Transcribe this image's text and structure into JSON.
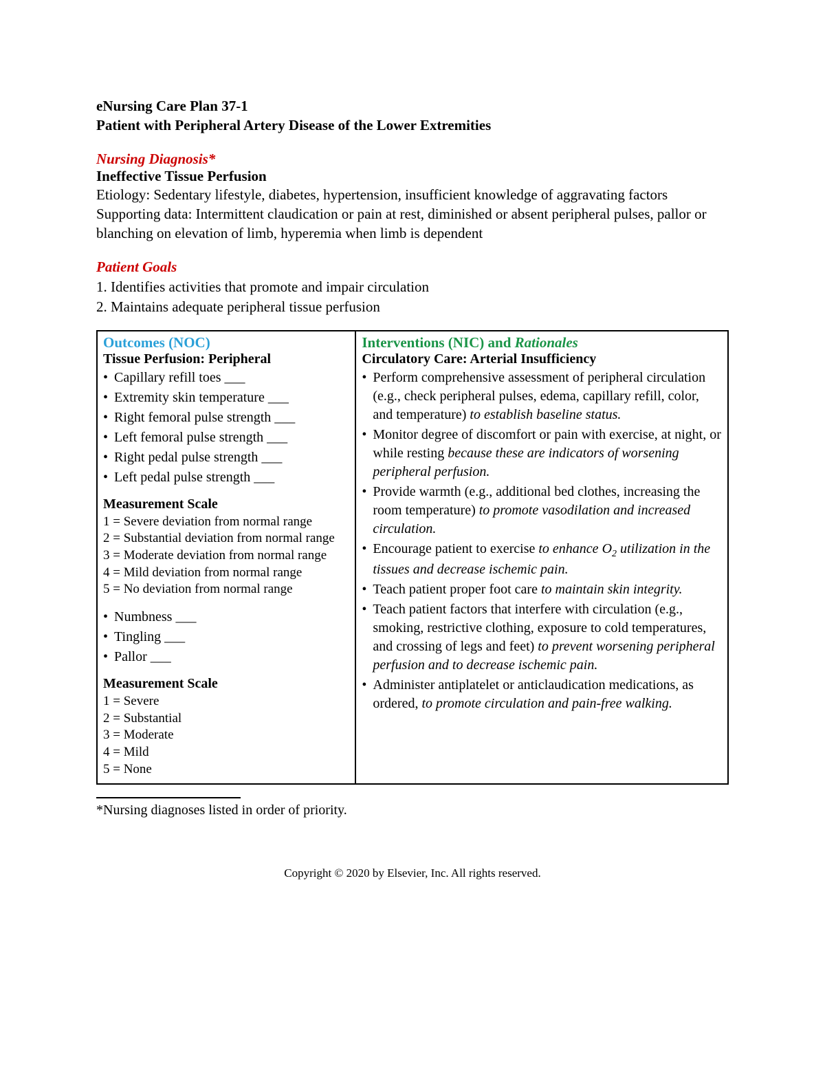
{
  "header": {
    "title_line1": "eNursing Care Plan 37-1",
    "title_line2": "Patient with Peripheral Artery Disease of the Lower Extremities"
  },
  "diagnosis": {
    "heading": "Nursing Diagnosis*",
    "name": "Ineffective Tissue Perfusion",
    "etiology_label": "Etiology:",
    "etiology_text": "Sedentary lifestyle, diabetes, hypertension, insufficient knowledge of aggravating factors",
    "supporting_label": "Supporting data:",
    "supporting_text": "Intermittent claudication or pain at rest, diminished or absent peripheral pulses, pallor or blanching on elevation of limb, hyperemia when limb is dependent"
  },
  "goals": {
    "heading": "Patient Goals",
    "items": [
      "1. Identifies activities that promote and impair circulation",
      "2. Maintains adequate peripheral tissue perfusion"
    ]
  },
  "table": {
    "headers": {
      "noc": "Outcomes (NOC)",
      "nic_prefix": "Interventions (NIC) and ",
      "nic_rationales": "Rationales"
    },
    "outcomes": {
      "title": "Tissue Perfusion: Peripheral",
      "indicators1": [
        "Capillary refill toes ___",
        "Extremity skin temperature ___",
        "Right femoral pulse strength ___",
        "Left femoral pulse strength ___",
        "Right pedal pulse strength ___",
        "Left pedal pulse strength ___"
      ],
      "scale1_title": "Measurement Scale",
      "scale1": [
        {
          "n": "1",
          "t": "Severe deviation from normal range"
        },
        {
          "n": "2",
          "t": "Substantial deviation from normal range"
        },
        {
          "n": "3",
          "t": "Moderate deviation from normal range"
        },
        {
          "n": "4",
          "t": "Mild deviation from normal range"
        },
        {
          "n": "5",
          "t": "No deviation from normal range"
        }
      ],
      "indicators2": [
        "Numbness ___",
        "Tingling ___",
        "Pallor ___"
      ],
      "scale2_title": "Measurement Scale",
      "scale2": [
        {
          "n": "1",
          "t": "Severe"
        },
        {
          "n": "2",
          "t": "Substantial"
        },
        {
          "n": "3",
          "t": "Moderate"
        },
        {
          "n": "4",
          "t": "Mild"
        },
        {
          "n": "5",
          "t": "None"
        }
      ]
    },
    "interventions": {
      "title": "Circulatory Care: Arterial Insufficiency",
      "items": [
        {
          "plain": "Perform comprehensive assessment of peripheral circulation (e.g., check peripheral pulses, edema, capillary refill, color, and temperature) ",
          "ital": "to establish baseline status."
        },
        {
          "plain": "Monitor degree of discomfort or pain with exercise, at night, or while resting ",
          "ital": "because these are indicators of worsening peripheral perfusion."
        },
        {
          "plain": "Provide warmth (e.g., additional bed clothes, increasing the room temperature) ",
          "ital": "to promote vasodilation and increased circulation."
        },
        {
          "plain": "Encourage patient to exercise ",
          "ital": "to enhance O",
          "sub": "2",
          "ital2": " utilization in the tissues and decrease ischemic pain."
        },
        {
          "plain": "Teach patient proper foot care ",
          "ital": "to maintain skin integrity."
        },
        {
          "plain": "Teach patient factors that interfere with circulation (e.g., smoking, restrictive clothing, exposure to cold temperatures, and crossing of legs and feet) ",
          "ital": "to prevent worsening peripheral perfusion and to decrease ischemic pain."
        },
        {
          "plain": "Administer antiplatelet or anticlaudication medications, as ordered, ",
          "ital": "to promote circulation and pain-free walking."
        }
      ]
    }
  },
  "footnote": "*Nursing diagnoses listed in order of priority.",
  "copyright": "Copyright © 2020 by Elsevier, Inc. All rights reserved.",
  "colors": {
    "red": "#cc0000",
    "teal": "#2aa0d8",
    "green": "#1a9447",
    "text": "#000000",
    "bg": "#ffffff"
  }
}
